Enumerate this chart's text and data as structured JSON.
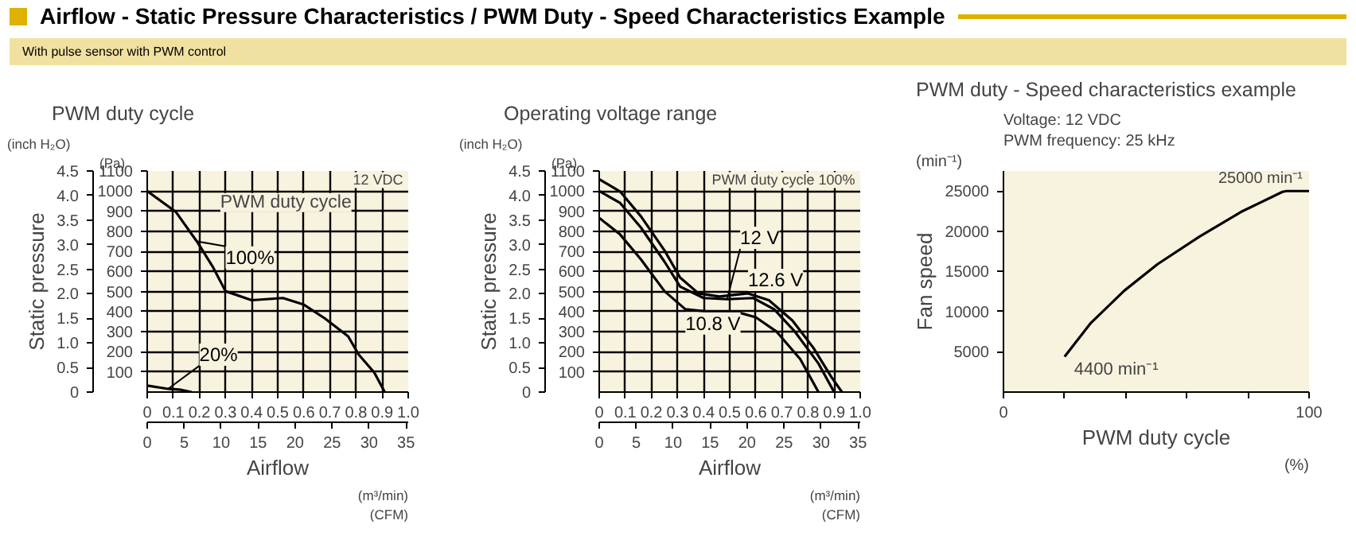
{
  "chart_data": [
    {
      "type": "line",
      "title": "PWM duty cycle",
      "xlabel": "Airflow",
      "ylabel": "Static pressure",
      "annotations": [
        "Airflow - Static Pressure Characteristics / PWM Duty - Speed Characteristics Example",
        "With pulse sensor with PWM control",
        "12 VDC",
        "PWM duty cycle",
        "(inch H₂O)",
        "(Pa)",
        "(m³/min)",
        "(CFM)"
      ],
      "series": [
        {
          "name": "100%",
          "color": "#000000",
          "axis": "y2",
          "x": [
            0,
            0.11,
            0.19,
            0.25,
            0.3,
            0.4,
            0.52,
            0.6,
            0.68,
            0.77,
            0.81,
            0.87,
            0.91
          ],
          "values": [
            1000,
            896,
            750,
            626,
            502,
            457,
            468,
            435,
            367,
            277,
            187,
            97,
            0
          ]
        },
        {
          "name": "20%",
          "color": "#000000",
          "axis": "y2",
          "x": [
            0,
            0.08,
            0.13,
            0.17
          ],
          "values": [
            32,
            16,
            11,
            0
          ]
        }
      ],
      "xlim": [
        0,
        1.0
      ],
      "xticks": [
        0,
        0.1,
        0.2,
        0.3,
        0.4,
        0.5,
        0.6,
        0.7,
        0.8,
        0.9,
        {
          "value": 1,
          "label": "1.0"
        }
      ],
      "x2lim": [
        0,
        35.3
      ],
      "x2ticks": [
        0,
        5,
        10,
        15,
        20,
        25,
        30,
        35
      ],
      "ylim": [
        0,
        4.5
      ],
      "yticks": [
        0,
        0.5,
        {
          "value": 1,
          "label": "1.0"
        },
        1.5,
        {
          "value": 2,
          "label": "2.0"
        },
        2.5,
        {
          "value": 3,
          "label": "3.0"
        },
        3.5,
        {
          "value": 4,
          "label": "4.0"
        },
        4.5
      ],
      "y2lim": [
        0,
        1100
      ],
      "y2ticks": [
        100,
        200,
        300,
        400,
        500,
        600,
        700,
        800,
        900,
        1000,
        1100
      ],
      "grid": true
    },
    {
      "type": "line",
      "title": "Operating voltage range",
      "xlabel": "Airflow",
      "ylabel": "Static pressure",
      "annotations": [
        "PWM duty cycle 100%",
        "(inch H₂O)",
        "(Pa)",
        "(m³/min)",
        "(CFM)"
      ],
      "series": [
        {
          "name": "12.6 V",
          "color": "#000000",
          "axis": "y2",
          "x": [
            0,
            0.08,
            0.16,
            0.25,
            0.31,
            0.38,
            0.46,
            0.57,
            0.65,
            0.74,
            0.82,
            0.89,
            0.93
          ],
          "values": [
            1059,
            998,
            874,
            705,
            570,
            491,
            475,
            491,
            457,
            356,
            221,
            74,
            0
          ]
        },
        {
          "name": "12 V",
          "color": "#000000",
          "axis": "y2",
          "x": [
            0,
            0.08,
            0.16,
            0.25,
            0.31,
            0.4,
            0.49,
            0.59,
            0.67,
            0.75,
            0.84,
            0.9
          ],
          "values": [
            1000,
            941,
            818,
            649,
            525,
            468,
            462,
            468,
            412,
            300,
            142,
            0
          ]
        },
        {
          "name": "10.8 V",
          "color": "#000000",
          "axis": "y2",
          "x": [
            0,
            0.08,
            0.16,
            0.25,
            0.33,
            0.41,
            0.52,
            0.6,
            0.68,
            0.77,
            0.84
          ],
          "values": [
            867,
            784,
            660,
            502,
            412,
            401,
            401,
            372,
            300,
            164,
            0
          ]
        }
      ],
      "xlim": [
        0,
        1.0
      ],
      "xticks": [
        0,
        0.1,
        0.2,
        0.3,
        0.4,
        0.5,
        0.6,
        0.7,
        0.8,
        0.9,
        {
          "value": 1,
          "label": "1.0"
        }
      ],
      "x2lim": [
        0,
        35.3
      ],
      "x2ticks": [
        0,
        5,
        10,
        15,
        20,
        25,
        30,
        35
      ],
      "ylim": [
        0,
        4.5
      ],
      "yticks": [
        0,
        0.5,
        {
          "value": 1,
          "label": "1.0"
        },
        1.5,
        {
          "value": 2,
          "label": "2.0"
        },
        2.5,
        {
          "value": 3,
          "label": "3.0"
        },
        3.5,
        {
          "value": 4,
          "label": "4.0"
        },
        4.5
      ],
      "y2lim": [
        0,
        1100
      ],
      "y2ticks": [
        100,
        200,
        300,
        400,
        500,
        600,
        700,
        800,
        900,
        1000,
        1100
      ],
      "grid": true
    },
    {
      "type": "line",
      "title": "PWM duty - Speed characteristics example",
      "xlabel": "PWM duty cycle",
      "ylabel": "Fan speed",
      "annotations": [
        "Voltage: 12 VDC",
        "PWM frequency: 25 kHz",
        "(min⁻¹)",
        "(%)",
        {
          "text": "4400 min⁻¹",
          "x": 20,
          "y": 4400
        },
        {
          "text": "25000 min⁻¹",
          "x": 100,
          "y": 25000
        }
      ],
      "series": [
        {
          "color": "#000000",
          "x": [
            20,
            28.6,
            39.5,
            50.4,
            64,
            77.7,
            91.3,
            92.6,
            100
          ],
          "values": [
            4400,
            8600,
            12600,
            15900,
            19300,
            22400,
            24900,
            25000,
            25000
          ]
        }
      ],
      "xlim": [
        0,
        100
      ],
      "xticks": [
        0,
        {
          "value": 20,
          "label": null
        },
        {
          "value": 40,
          "label": null
        },
        {
          "value": 60,
          "label": null
        },
        {
          "value": 80,
          "label": null
        },
        100
      ],
      "ylim": [
        0,
        27500
      ],
      "yticks": [
        5000,
        10000,
        15000,
        20000,
        25000
      ],
      "grid": false
    }
  ]
}
